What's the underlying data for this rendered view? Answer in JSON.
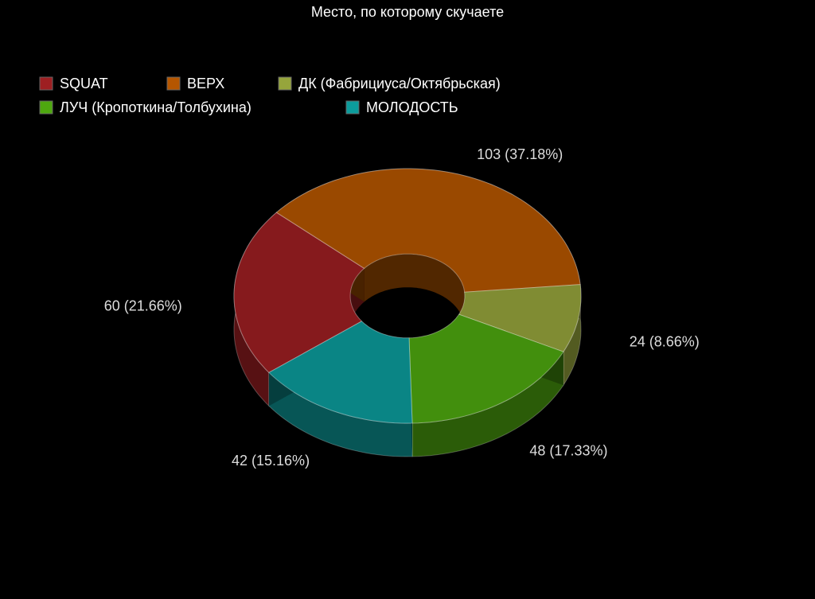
{
  "chart_data": {
    "type": "donut3d",
    "title": "Место, по которому скучаете",
    "categories": [
      "SQUAT",
      "ВЕРХ",
      "ДК (Фабрициуса/Октябрьская)",
      "ЛУЧ (Кропоткина/Толбухина)",
      "МОЛОДОСТЬ"
    ],
    "values": [
      60,
      103,
      24,
      48,
      42
    ],
    "value_labels": [
      "60 (21.66%)",
      "103 (37.18%)",
      "24 (8.66%)",
      "48 (17.33%)",
      "42 (15.16%)"
    ],
    "colors": [
      "#9e1f22",
      "#b55600",
      "#96a53c",
      "#4ea80f",
      "#0c9c9c"
    ],
    "legend": "top-left"
  }
}
